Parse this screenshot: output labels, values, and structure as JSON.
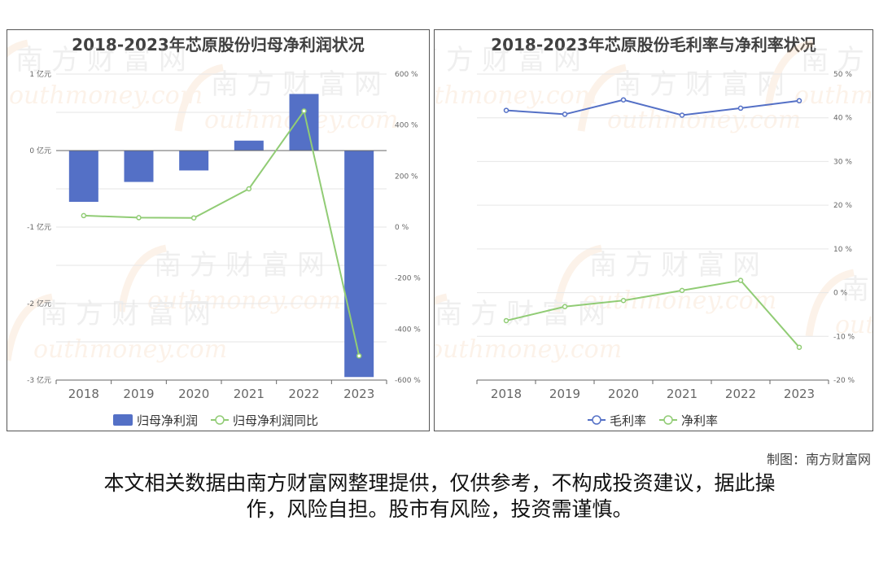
{
  "credit": "制图：南方财富网",
  "disclaimer": {
    "line1": "本文相关数据由南方财富网整理提供，仅供参考，不构成投资建议，据此操",
    "line2": "作，风险自担。股市有风险，投资需谨慎。"
  },
  "watermark": {
    "brand_cn": "南方财富网",
    "brand_en": "southmoney.com"
  },
  "colors": {
    "bar": "#5470c6",
    "line_green": "#91cc75",
    "line_blue": "#5470c6",
    "axis": "#666666",
    "grid": "#e6e6e6"
  },
  "chart_data": [
    {
      "type": "bar",
      "title": "2018-2023年芯原股份归母净利润状况",
      "categories": [
        "2018",
        "2019",
        "2020",
        "2021",
        "2022",
        "2023"
      ],
      "y_left": {
        "ticks": [
          "1 亿元",
          "0 亿元",
          "-1 亿元",
          "-2 亿元",
          "-3 亿元"
        ],
        "ylim": [
          -3,
          1
        ]
      },
      "y_right": {
        "ticks": [
          "600 %",
          "400 %",
          "200 %",
          "0 %",
          "-200 %",
          "-400 %",
          "-600 %"
        ],
        "ylim": [
          -600,
          600
        ]
      },
      "series": [
        {
          "name": "归母净利润",
          "kind": "bar",
          "axis": "left",
          "values": [
            -0.67,
            -0.41,
            -0.26,
            0.13,
            0.74,
            -2.96
          ]
        },
        {
          "name": "归母净利润同比",
          "kind": "line",
          "axis": "right",
          "values": [
            45,
            37,
            36,
            150,
            455,
            -505
          ]
        }
      ],
      "legend": "bottom-center",
      "grid": true
    },
    {
      "type": "line",
      "title": "2018-2023年芯原股份毛利率与净利率状况",
      "categories": [
        "2018",
        "2019",
        "2020",
        "2021",
        "2022",
        "2023"
      ],
      "y_right": {
        "ticks": [
          "50 %",
          "40 %",
          "30 %",
          "20 %",
          "10 %",
          "0 %",
          "-10 %",
          "-20 %"
        ],
        "ylim": [
          -20,
          50
        ]
      },
      "series": [
        {
          "name": "毛利率",
          "values": [
            41.7,
            40.8,
            44.1,
            40.6,
            42.2,
            43.9
          ]
        },
        {
          "name": "净利率",
          "values": [
            -6.4,
            -3.2,
            -1.8,
            0.5,
            2.8,
            -12.5
          ]
        }
      ],
      "legend": "bottom-center",
      "grid": true
    }
  ]
}
